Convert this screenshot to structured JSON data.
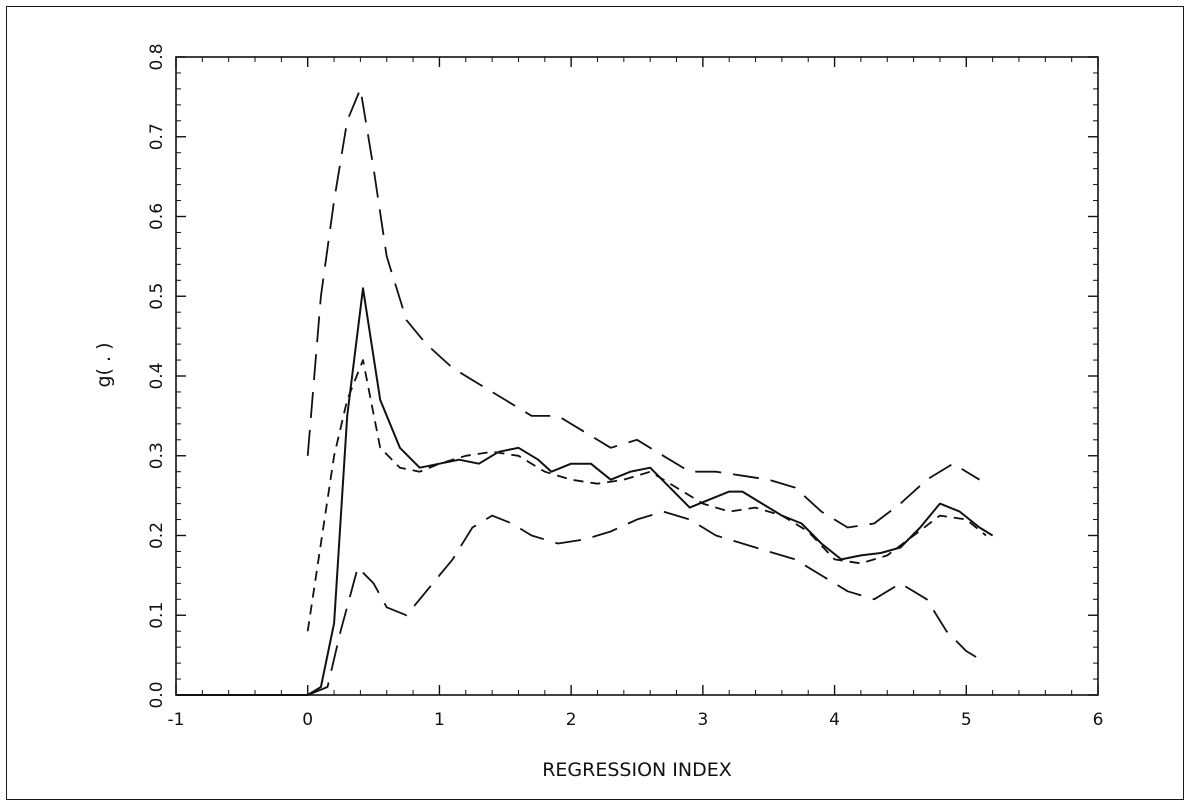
{
  "chart_data": {
    "type": "line",
    "xlabel": "REGRESSION INDEX",
    "ylabel": "g( . )",
    "xlim": [
      -1,
      6
    ],
    "ylim": [
      0,
      0.8
    ],
    "x_ticks": [
      -1,
      0,
      1,
      2,
      3,
      4,
      5,
      6
    ],
    "x_tick_labels": [
      "-1",
      "0",
      "1",
      "2",
      "3",
      "4",
      "5",
      "6"
    ],
    "y_ticks": [
      0,
      0.1,
      0.2,
      0.3,
      0.4,
      0.5,
      0.6,
      0.7,
      0.8
    ],
    "y_tick_labels": [
      "0.0",
      "0.1",
      "0.2",
      "0.3",
      "0.4",
      "0.5",
      "0.6",
      "0.7",
      "0.8"
    ],
    "grid": false,
    "series": [
      {
        "style": "solid",
        "x": [
          -1,
          0,
          0.1,
          0.2,
          0.3,
          0.42,
          0.55,
          0.7,
          0.85,
          1.0,
          1.15,
          1.3,
          1.45,
          1.6,
          1.75,
          1.85,
          2.0,
          2.15,
          2.3,
          2.45,
          2.6,
          2.75,
          2.9,
          3.05,
          3.2,
          3.3,
          3.45,
          3.6,
          3.75,
          3.9,
          4.05,
          4.2,
          4.35,
          4.5,
          4.65,
          4.8,
          4.95,
          5.1,
          5.2
        ],
        "y": [
          0,
          0,
          0.01,
          0.09,
          0.35,
          0.51,
          0.37,
          0.31,
          0.285,
          0.29,
          0.295,
          0.29,
          0.305,
          0.31,
          0.295,
          0.28,
          0.29,
          0.29,
          0.27,
          0.28,
          0.285,
          0.26,
          0.235,
          0.245,
          0.255,
          0.255,
          0.24,
          0.225,
          0.215,
          0.19,
          0.17,
          0.175,
          0.178,
          0.185,
          0.21,
          0.24,
          0.23,
          0.21,
          0.2
        ]
      },
      {
        "style": "short-dash",
        "x": [
          0,
          0.1,
          0.2,
          0.3,
          0.42,
          0.55,
          0.7,
          0.85,
          1.0,
          1.2,
          1.4,
          1.6,
          1.8,
          2.0,
          2.2,
          2.4,
          2.6,
          2.8,
          3.0,
          3.2,
          3.4,
          3.6,
          3.8,
          4.0,
          4.2,
          4.4,
          4.6,
          4.8,
          5.0,
          5.15
        ],
        "y": [
          0.08,
          0.19,
          0.3,
          0.37,
          0.42,
          0.31,
          0.285,
          0.28,
          0.29,
          0.3,
          0.305,
          0.3,
          0.28,
          0.27,
          0.265,
          0.27,
          0.28,
          0.26,
          0.24,
          0.23,
          0.235,
          0.225,
          0.205,
          0.17,
          0.165,
          0.175,
          0.2,
          0.225,
          0.22,
          0.2
        ]
      },
      {
        "style": "long-dash",
        "x": [
          0,
          0.1,
          0.2,
          0.3,
          0.4,
          0.5,
          0.6,
          0.75,
          0.9,
          1.1,
          1.3,
          1.5,
          1.7,
          1.9,
          2.1,
          2.3,
          2.5,
          2.7,
          2.9,
          3.1,
          3.3,
          3.5,
          3.7,
          3.9,
          4.1,
          4.3,
          4.5,
          4.7,
          4.9,
          5.1
        ],
        "y": [
          0.3,
          0.5,
          0.62,
          0.72,
          0.76,
          0.66,
          0.55,
          0.47,
          0.44,
          0.41,
          0.39,
          0.37,
          0.35,
          0.35,
          0.33,
          0.31,
          0.32,
          0.3,
          0.28,
          0.28,
          0.275,
          0.27,
          0.26,
          0.23,
          0.21,
          0.215,
          0.24,
          0.27,
          0.29,
          0.27
        ]
      },
      {
        "style": "long-dash",
        "x": [
          0,
          0.15,
          0.25,
          0.38,
          0.5,
          0.6,
          0.75,
          0.9,
          1.1,
          1.25,
          1.4,
          1.55,
          1.7,
          1.9,
          2.1,
          2.3,
          2.5,
          2.7,
          2.9,
          3.1,
          3.3,
          3.5,
          3.7,
          3.9,
          4.1,
          4.3,
          4.5,
          4.7,
          4.85,
          5.0,
          5.1
        ],
        "y": [
          0,
          0.01,
          0.08,
          0.16,
          0.14,
          0.11,
          0.1,
          0.13,
          0.17,
          0.21,
          0.225,
          0.215,
          0.2,
          0.19,
          0.195,
          0.205,
          0.22,
          0.23,
          0.22,
          0.2,
          0.19,
          0.18,
          0.17,
          0.15,
          0.13,
          0.12,
          0.14,
          0.12,
          0.08,
          0.055,
          0.045
        ]
      }
    ]
  }
}
